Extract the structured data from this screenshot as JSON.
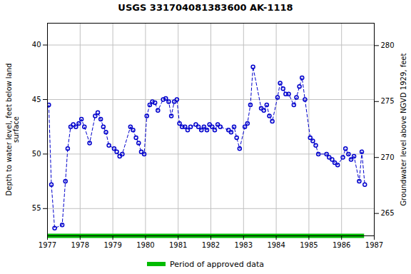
{
  "chart_data": {
    "type": "line",
    "title": "USGS 331704081383600 AK-1118",
    "ylabel": "Depth to water level, feet below land\nsurface",
    "y2label": "Groundwater level above NGVD 1929, feet",
    "xlim": [
      1977.0,
      1987.0
    ],
    "xticks": [
      1977,
      1978,
      1979,
      1980,
      1981,
      1982,
      1983,
      1984,
      1985,
      1986,
      1987
    ],
    "ylim": [
      57.5,
      38.0
    ],
    "yticks": [
      40,
      45,
      50,
      55
    ],
    "y2lim": [
      263.0,
      282.0
    ],
    "y2ticks": [
      265,
      270,
      275,
      280
    ],
    "grid": true,
    "legend": "bottom",
    "color": "#0000cc",
    "line_style": "dashed",
    "marker": "circle",
    "approved_period": {
      "name": "Period of approved data",
      "color": "#00bb00",
      "x": [
        1977.0,
        1986.7
      ]
    },
    "x": [
      1977.04,
      1977.12,
      1977.22,
      1977.45,
      1977.55,
      1977.62,
      1977.71,
      1977.79,
      1977.87,
      1977.96,
      1978.04,
      1978.13,
      1978.29,
      1978.46,
      1978.54,
      1978.63,
      1978.71,
      1978.79,
      1978.88,
      1979.04,
      1979.12,
      1979.21,
      1979.29,
      1979.54,
      1979.62,
      1979.71,
      1979.79,
      1979.87,
      1979.96,
      1980.04,
      1980.13,
      1980.21,
      1980.29,
      1980.38,
      1980.54,
      1980.62,
      1980.71,
      1980.79,
      1980.88,
      1980.96,
      1981.04,
      1981.12,
      1981.21,
      1981.29,
      1981.38,
      1981.54,
      1981.62,
      1981.71,
      1981.79,
      1981.88,
      1981.96,
      1982.04,
      1982.12,
      1982.21,
      1982.29,
      1982.54,
      1982.62,
      1982.71,
      1982.79,
      1982.88,
      1983.04,
      1983.12,
      1983.21,
      1983.29,
      1983.54,
      1983.62,
      1983.71,
      1983.79,
      1983.88,
      1984.04,
      1984.12,
      1984.21,
      1984.29,
      1984.38,
      1984.54,
      1984.62,
      1984.71,
      1984.79,
      1984.88,
      1985.04,
      1985.12,
      1985.21,
      1985.29,
      1985.54,
      1985.62,
      1985.71,
      1985.79,
      1985.88,
      1986.04,
      1986.12,
      1986.21,
      1986.29,
      1986.38,
      1986.54,
      1986.62,
      1986.71
    ],
    "values": [
      45.5,
      52.8,
      56.8,
      56.5,
      52.5,
      49.5,
      47.5,
      47.3,
      47.5,
      47.2,
      46.8,
      47.5,
      49.0,
      46.5,
      46.2,
      46.8,
      47.5,
      48.0,
      49.2,
      49.5,
      49.8,
      50.2,
      50.0,
      47.5,
      47.8,
      48.5,
      49.0,
      49.8,
      50.0,
      46.5,
      45.5,
      45.2,
      45.3,
      46.0,
      45.0,
      44.9,
      45.2,
      46.5,
      45.2,
      45.0,
      47.2,
      47.5,
      47.5,
      47.8,
      47.5,
      47.3,
      47.5,
      47.8,
      47.5,
      47.8,
      47.3,
      47.5,
      47.8,
      47.3,
      47.5,
      47.8,
      48.0,
      47.5,
      48.5,
      49.5,
      47.5,
      47.2,
      45.5,
      42.0,
      45.8,
      46.0,
      45.5,
      46.5,
      47.0,
      44.8,
      43.5,
      44.0,
      44.5,
      44.5,
      45.5,
      44.8,
      43.8,
      43.0,
      45.0,
      48.5,
      48.8,
      49.2,
      50.0,
      50.0,
      50.3,
      50.5,
      50.8,
      51.0,
      50.3,
      49.5,
      50.0,
      50.5,
      50.2,
      52.5,
      49.8,
      52.8
    ]
  }
}
